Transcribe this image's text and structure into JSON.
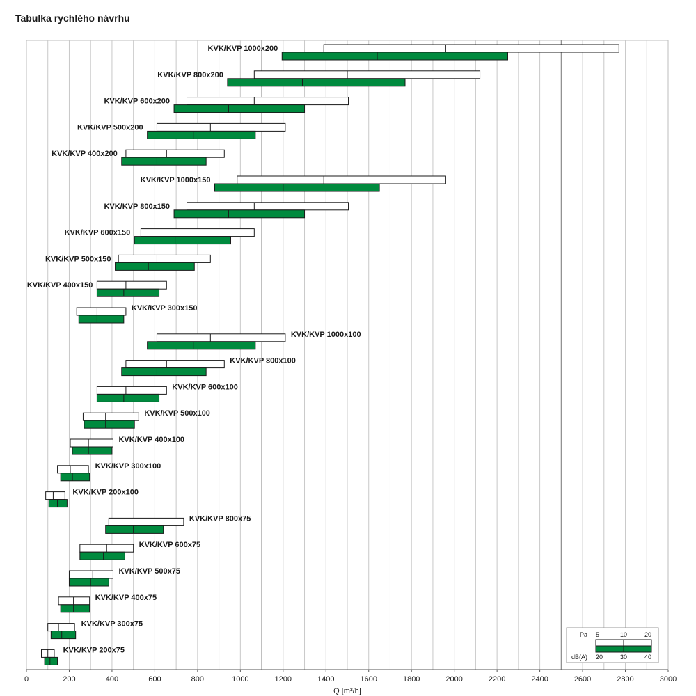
{
  "chart_data": {
    "type": "bar",
    "title": "Tabulka rychlého návrhu",
    "xlabel": "Q [m³/h]",
    "xlim": [
      0,
      3000
    ],
    "xticks": [
      0,
      200,
      400,
      600,
      800,
      1000,
      1200,
      1400,
      1600,
      1800,
      2000,
      2200,
      2400,
      2600,
      2800,
      3000
    ],
    "grid": true,
    "colors": {
      "pressure_bar": "#ffffff",
      "noise_bar": "#008a3e",
      "outline": "#1a1a1a",
      "grid": "#c8c8c8"
    },
    "legend": {
      "placement": "bottom-right",
      "pressure": {
        "label": "Pa",
        "values": [
          "5",
          "10",
          "20"
        ]
      },
      "noise": {
        "label": "dB(A)",
        "values": [
          "20",
          "30",
          "40"
        ]
      }
    },
    "series_description": {
      "pressure": "white bar: air flow at 5 Pa, 10 Pa, 20 Pa",
      "noise": "green bar: air flow at 20 dB(A), 30 dB(A), 40 dB(A)"
    },
    "rows": [
      {
        "name": "KVK/KVP 1000x200",
        "label_side": "left",
        "pressure": [
          1390,
          1960,
          2770
        ],
        "noise": [
          1195,
          1640,
          2250
        ]
      },
      {
        "name": "KVK/KVP  800x200",
        "label_side": "left",
        "pressure": [
          1065,
          1500,
          2120
        ],
        "noise": [
          940,
          1290,
          1770
        ]
      },
      {
        "name": "KVK/KVP 600x200",
        "label_side": "left",
        "pressure": [
          750,
          1065,
          1505
        ],
        "noise": [
          690,
          945,
          1300
        ]
      },
      {
        "name": "KVK/KVP 500x200",
        "label_side": "left",
        "pressure": [
          610,
          860,
          1210
        ],
        "noise": [
          565,
          780,
          1070
        ]
      },
      {
        "name": "KVK/KVP  400x200",
        "label_side": "left",
        "pressure": [
          465,
          655,
          925
        ],
        "noise": [
          445,
          610,
          840
        ]
      },
      {
        "name": "KVK/KVP 1000x150",
        "label_side": "left",
        "pressure": [
          985,
          1390,
          1960
        ],
        "noise": [
          880,
          1200,
          1650
        ]
      },
      {
        "name": "KVK/KVP  800x150",
        "label_side": "left",
        "pressure": [
          750,
          1065,
          1505
        ],
        "noise": [
          690,
          945,
          1300
        ]
      },
      {
        "name": "KVK/KVP  600x150",
        "label_side": "left",
        "pressure": [
          535,
          750,
          1065
        ],
        "noise": [
          505,
          695,
          955
        ]
      },
      {
        "name": "KVK/KVP  500x150",
        "label_side": "left",
        "pressure": [
          430,
          610,
          860
        ],
        "noise": [
          415,
          570,
          785
        ]
      },
      {
        "name": "KVK/KVP  400x150",
        "label_side": "left",
        "pressure": [
          330,
          465,
          655
        ],
        "noise": [
          330,
          455,
          620
        ]
      },
      {
        "name": "KVK/KVP  300x150",
        "label_side": "right",
        "pressure": [
          235,
          330,
          465
        ],
        "noise": [
          245,
          330,
          455
        ]
      },
      {
        "name": "KVK/KVP 1000x100",
        "label_side": "right",
        "pressure": [
          610,
          860,
          1210
        ],
        "noise": [
          565,
          780,
          1070
        ]
      },
      {
        "name": "KVK/KVP  800x100",
        "label_side": "right",
        "pressure": [
          465,
          655,
          925
        ],
        "noise": [
          445,
          610,
          840
        ]
      },
      {
        "name": "KVK/KVP  600x100",
        "label_side": "right",
        "pressure": [
          330,
          465,
          655
        ],
        "noise": [
          330,
          455,
          620
        ]
      },
      {
        "name": "KVK/KVP  500x100",
        "label_side": "right",
        "pressure": [
          265,
          370,
          525
        ],
        "noise": [
          270,
          370,
          505
        ]
      },
      {
        "name": "KVK/KVP  400x100",
        "label_side": "right",
        "pressure": [
          205,
          290,
          405
        ],
        "noise": [
          215,
          290,
          400
        ]
      },
      {
        "name": "KVK/KVP  300x100",
        "label_side": "right",
        "pressure": [
          145,
          205,
          290
        ],
        "noise": [
          160,
          215,
          295
        ]
      },
      {
        "name": "KVK/KVP  200x100",
        "label_side": "right",
        "pressure": [
          90,
          125,
          180
        ],
        "noise": [
          105,
          145,
          190
        ]
      },
      {
        "name": "KVK/KVP 800x75",
        "label_side": "right",
        "pressure": [
          385,
          545,
          735
        ],
        "noise": [
          370,
          500,
          640
        ]
      },
      {
        "name": "KVK/KVP 600x75",
        "label_side": "right",
        "pressure": [
          250,
          375,
          500
        ],
        "noise": [
          250,
          360,
          460
        ]
      },
      {
        "name": "KVK/KVP  500x75",
        "label_side": "right",
        "pressure": [
          200,
          310,
          405
        ],
        "noise": [
          200,
          300,
          385
        ]
      },
      {
        "name": "KVK/KVP  400x75",
        "label_side": "right",
        "pressure": [
          150,
          220,
          295
        ],
        "noise": [
          160,
          220,
          295
        ]
      },
      {
        "name": "KVK/KVP  300x75",
        "label_side": "right",
        "pressure": [
          100,
          150,
          225
        ],
        "noise": [
          115,
          165,
          230
        ]
      },
      {
        "name": "KVK/KVP 200x75",
        "label_side": "right",
        "pressure": [
          70,
          100,
          130
        ],
        "noise": [
          85,
          110,
          145
        ]
      }
    ]
  }
}
